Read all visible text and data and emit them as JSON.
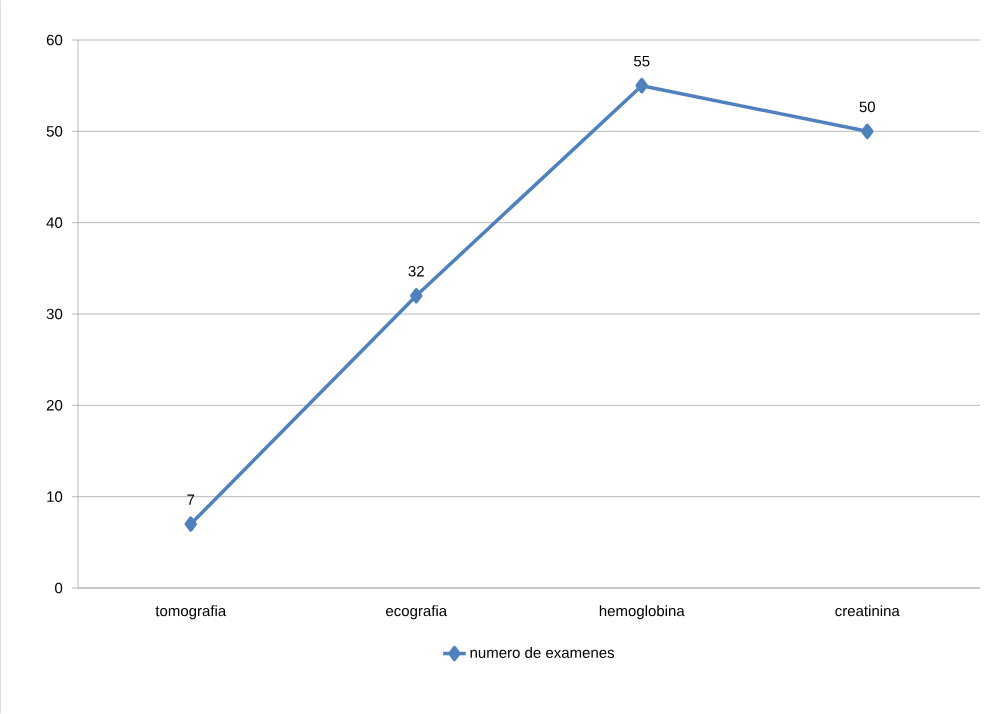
{
  "chart_data": {
    "type": "line",
    "categories": [
      "tomografia",
      "ecografia",
      "hemoglobina",
      "creatinina"
    ],
    "series": [
      {
        "name": "numero de examenes",
        "color": "#4f81bd",
        "values": [
          7,
          32,
          55,
          50
        ]
      }
    ],
    "ylim": [
      0,
      60
    ],
    "yticks": [
      0,
      10,
      20,
      30,
      40,
      50,
      60
    ],
    "grid": "y",
    "legend": "bottom",
    "marker": "diamond",
    "line_style": "solid",
    "data_labels": true
  }
}
